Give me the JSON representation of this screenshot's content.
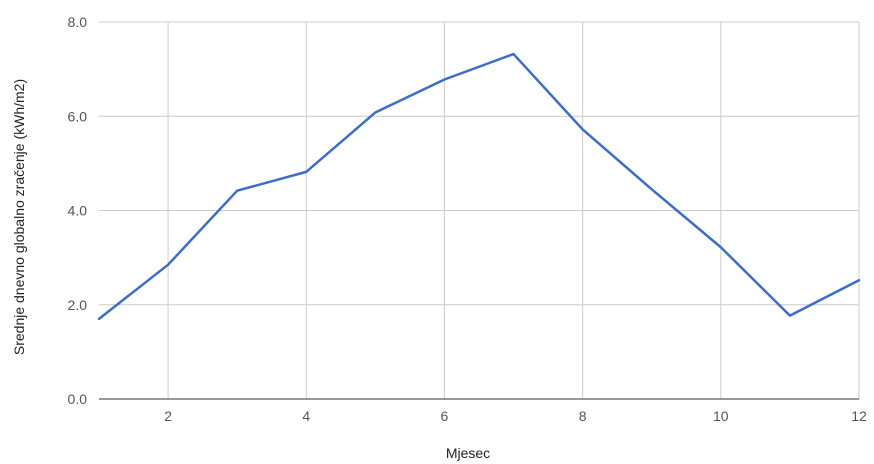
{
  "chart_data": {
    "type": "line",
    "title": "",
    "xlabel": "Mjesec",
    "ylabel": "Srednje dnevno globalno zračenje (kWh/m2)",
    "x": [
      1,
      2,
      3,
      4,
      5,
      6,
      7,
      8,
      9,
      10,
      11,
      12
    ],
    "series": [
      {
        "values": [
          1.7,
          2.85,
          4.42,
          4.82,
          6.08,
          6.78,
          7.32,
          5.72,
          4.45,
          3.22,
          1.77,
          2.52
        ]
      }
    ],
    "xlim": [
      1,
      12
    ],
    "ylim": [
      0,
      8
    ],
    "x_ticks": [
      2,
      4,
      6,
      8,
      10,
      12
    ],
    "x_tick_labels": [
      "2",
      "4",
      "6",
      "8",
      "10",
      "12"
    ],
    "y_ticks": [
      0,
      2,
      4,
      6,
      8
    ],
    "y_tick_labels": [
      "0.0",
      "2.0",
      "4.0",
      "6.0",
      "8.0"
    ],
    "grid": true,
    "legend": "none",
    "colors": {
      "series": "#3c6dc9",
      "grid": "#cccccc",
      "baseline": "#333333"
    }
  }
}
